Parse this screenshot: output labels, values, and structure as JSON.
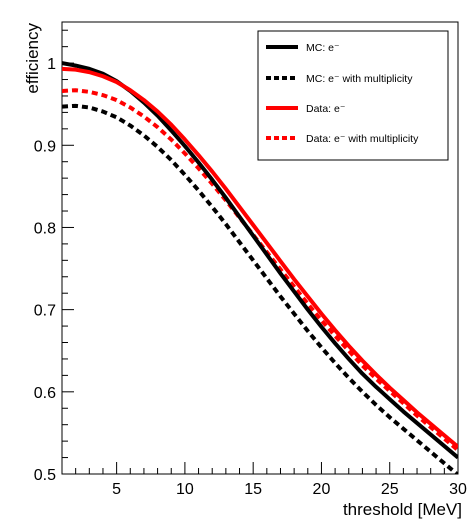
{
  "chart_data": {
    "type": "line",
    "xlabel": "threshold [MeV]",
    "ylabel": "efficiency",
    "xlim": [
      1,
      30
    ],
    "ylim": [
      0.5,
      1.05
    ],
    "x_ticks": [
      5,
      10,
      15,
      20,
      25,
      30
    ],
    "y_ticks": [
      0.5,
      0.6,
      0.7,
      0.8,
      0.9,
      1.0
    ],
    "x_tick_labels": [
      "5",
      "10",
      "15",
      "20",
      "25",
      "30"
    ],
    "y_tick_labels": [
      "0.5",
      "0.6",
      "0.7",
      "0.8",
      "0.9",
      "1"
    ],
    "legend_position": "top-right",
    "grid": false,
    "x": [
      1,
      2,
      3,
      4,
      5,
      6,
      7,
      8,
      9,
      10,
      11,
      12,
      13,
      14,
      15,
      16,
      17,
      18,
      19,
      20,
      21,
      22,
      23,
      24,
      25,
      26,
      27,
      28,
      29,
      30
    ],
    "series": [
      {
        "name": "MC: e⁻",
        "color": "#000000",
        "dash": "solid",
        "values": [
          1.0,
          0.997,
          0.993,
          0.987,
          0.978,
          0.966,
          0.952,
          0.936,
          0.918,
          0.899,
          0.879,
          0.858,
          0.836,
          0.813,
          0.79,
          0.767,
          0.744,
          0.722,
          0.7,
          0.679,
          0.659,
          0.64,
          0.622,
          0.606,
          0.591,
          0.576,
          0.562,
          0.548,
          0.534,
          0.52
        ]
      },
      {
        "name": "MC: e⁻ with multiplicity",
        "color": "#000000",
        "dash": "dotted",
        "values": [
          0.947,
          0.948,
          0.946,
          0.941,
          0.934,
          0.924,
          0.912,
          0.898,
          0.882,
          0.864,
          0.845,
          0.825,
          0.804,
          0.782,
          0.76,
          0.738,
          0.716,
          0.695,
          0.674,
          0.654,
          0.635,
          0.617,
          0.6,
          0.584,
          0.569,
          0.555,
          0.541,
          0.527,
          0.513,
          0.499
        ]
      },
      {
        "name": "Data: e⁻",
        "color": "#ff0000",
        "dash": "solid",
        "values": [
          0.993,
          0.992,
          0.989,
          0.984,
          0.977,
          0.967,
          0.955,
          0.941,
          0.925,
          0.907,
          0.888,
          0.868,
          0.847,
          0.825,
          0.803,
          0.781,
          0.759,
          0.737,
          0.716,
          0.695,
          0.675,
          0.656,
          0.638,
          0.621,
          0.605,
          0.59,
          0.575,
          0.561,
          0.547,
          0.533
        ]
      },
      {
        "name": "Data: e⁻ with multiplicity",
        "color": "#ff0000",
        "dash": "dotted",
        "values": [
          0.966,
          0.967,
          0.965,
          0.961,
          0.955,
          0.946,
          0.935,
          0.922,
          0.907,
          0.89,
          0.872,
          0.853,
          0.833,
          0.812,
          0.791,
          0.77,
          0.749,
          0.728,
          0.707,
          0.687,
          0.668,
          0.65,
          0.632,
          0.616,
          0.601,
          0.586,
          0.571,
          0.557,
          0.543,
          0.529
        ]
      }
    ]
  }
}
